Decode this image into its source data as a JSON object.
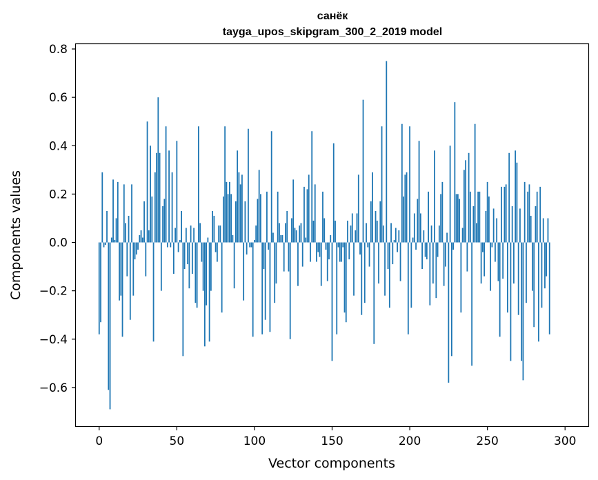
{
  "chart_data": {
    "type": "bar",
    "title": "санёк",
    "subtitle": "tayga_upos_skipgram_300_2_2019 model",
    "xlabel": "Vector components",
    "ylabel": "Components values",
    "xlim": [
      -15,
      315
    ],
    "ylim": [
      -0.76,
      0.82
    ],
    "xticks": [
      0,
      50,
      100,
      150,
      200,
      250,
      300
    ],
    "xtick_labels": [
      "0",
      "50",
      "100",
      "150",
      "200",
      "250",
      "300"
    ],
    "yticks": [
      -0.6,
      -0.4,
      -0.2,
      0.0,
      0.2,
      0.4,
      0.6,
      0.8
    ],
    "ytick_labels": [
      "−0.6",
      "−0.4",
      "−0.2",
      "0.0",
      "0.2",
      "0.4",
      "0.6",
      "0.8"
    ],
    "bar_color": "#1f77b4",
    "grid": false,
    "series": [
      {
        "values": [
          -0.38,
          -0.33,
          0.29,
          -0.02,
          -0.01,
          0.13,
          -0.61,
          -0.69,
          0.02,
          0.26,
          0.01,
          0.1,
          0.25,
          -0.24,
          -0.22,
          -0.39,
          0.24,
          0.08,
          -0.14,
          0.11,
          -0.32,
          0.24,
          -0.22,
          -0.07,
          -0.05,
          -0.03,
          0.03,
          0.05,
          0.02,
          0.17,
          -0.14,
          0.5,
          0.05,
          0.4,
          0.19,
          -0.41,
          0.29,
          0.37,
          0.6,
          0.37,
          -0.2,
          0.15,
          0.18,
          0.48,
          -0.02,
          0.38,
          -0.02,
          0.29,
          -0.13,
          0.06,
          0.42,
          -0.04,
          0.01,
          0.13,
          -0.47,
          -0.11,
          0.06,
          -0.09,
          -0.19,
          0.07,
          -0.13,
          0.06,
          -0.25,
          -0.27,
          0.48,
          0.08,
          -0.08,
          -0.2,
          -0.43,
          -0.26,
          0.02,
          -0.41,
          -0.2,
          0.13,
          0.11,
          -0.04,
          -0.08,
          0.07,
          0.07,
          -0.29,
          0.19,
          0.48,
          0.25,
          0.2,
          0.25,
          0.2,
          0.03,
          -0.19,
          0.17,
          0.38,
          0.29,
          0.24,
          0.28,
          -0.24,
          0.17,
          -0.05,
          0.47,
          -0.02,
          -0.02,
          -0.39,
          0.01,
          0.07,
          0.18,
          0.3,
          0.2,
          -0.38,
          -0.11,
          -0.32,
          0.21,
          -0.03,
          -0.37,
          0.46,
          0.04,
          -0.25,
          -0.17,
          0.21,
          0.08,
          0.03,
          0.03,
          -0.12,
          0.08,
          0.13,
          -0.12,
          -0.4,
          0.1,
          0.26,
          0.06,
          0.05,
          -0.18,
          0.07,
          0.08,
          -0.1,
          0.23,
          0.02,
          0.22,
          0.28,
          -0.08,
          0.46,
          0.09,
          0.24,
          -0.08,
          -0.04,
          -0.06,
          -0.18,
          0.21,
          0.1,
          -0.03,
          -0.16,
          -0.07,
          0.03,
          -0.49,
          0.41,
          0.09,
          -0.38,
          -0.02,
          -0.08,
          -0.08,
          -0.02,
          -0.29,
          -0.33,
          0.09,
          -0.07,
          0.07,
          0.12,
          -0.22,
          0.05,
          0.12,
          0.28,
          -0.05,
          -0.3,
          0.59,
          -0.25,
          0.08,
          -0.02,
          -0.1,
          0.17,
          0.29,
          -0.42,
          0.13,
          0.09,
          -0.17,
          0.17,
          0.48,
          0.07,
          -0.22,
          0.75,
          -0.11,
          -0.27,
          0.08,
          -0.09,
          0.01,
          0.06,
          -0.04,
          0.05,
          -0.16,
          0.49,
          0.19,
          0.28,
          0.29,
          -0.38,
          0.48,
          -0.27,
          0.02,
          0.12,
          -0.03,
          0.18,
          0.42,
          0.12,
          -0.11,
          0.05,
          -0.06,
          -0.07,
          0.21,
          -0.26,
          0.07,
          -0.17,
          0.38,
          -0.23,
          -0.06,
          0.07,
          0.2,
          0.25,
          -0.18,
          -0.1,
          0.04,
          -0.58,
          0.4,
          -0.47,
          -0.03,
          0.58,
          0.2,
          0.2,
          0.18,
          -0.29,
          0.06,
          0.3,
          0.34,
          -0.12,
          0.37,
          0.21,
          -0.51,
          0.15,
          0.49,
          0.08,
          0.21,
          0.21,
          -0.17,
          -0.04,
          -0.14,
          0.13,
          0.25,
          0.19,
          -0.2,
          -0.02,
          0.14,
          -0.08,
          0.1,
          -0.16,
          -0.39,
          0.23,
          -0.15,
          0.23,
          0.24,
          -0.29,
          0.37,
          -0.49,
          0.15,
          -0.17,
          0.38,
          0.33,
          -0.3,
          0.14,
          -0.49,
          -0.57,
          0.25,
          -0.25,
          0.21,
          0.24,
          0.11,
          -0.2,
          -0.35,
          0.15,
          0.21,
          -0.41,
          0.23,
          -0.27,
          0.1,
          -0.19,
          -0.14,
          0.1,
          -0.38
        ]
      }
    ]
  }
}
